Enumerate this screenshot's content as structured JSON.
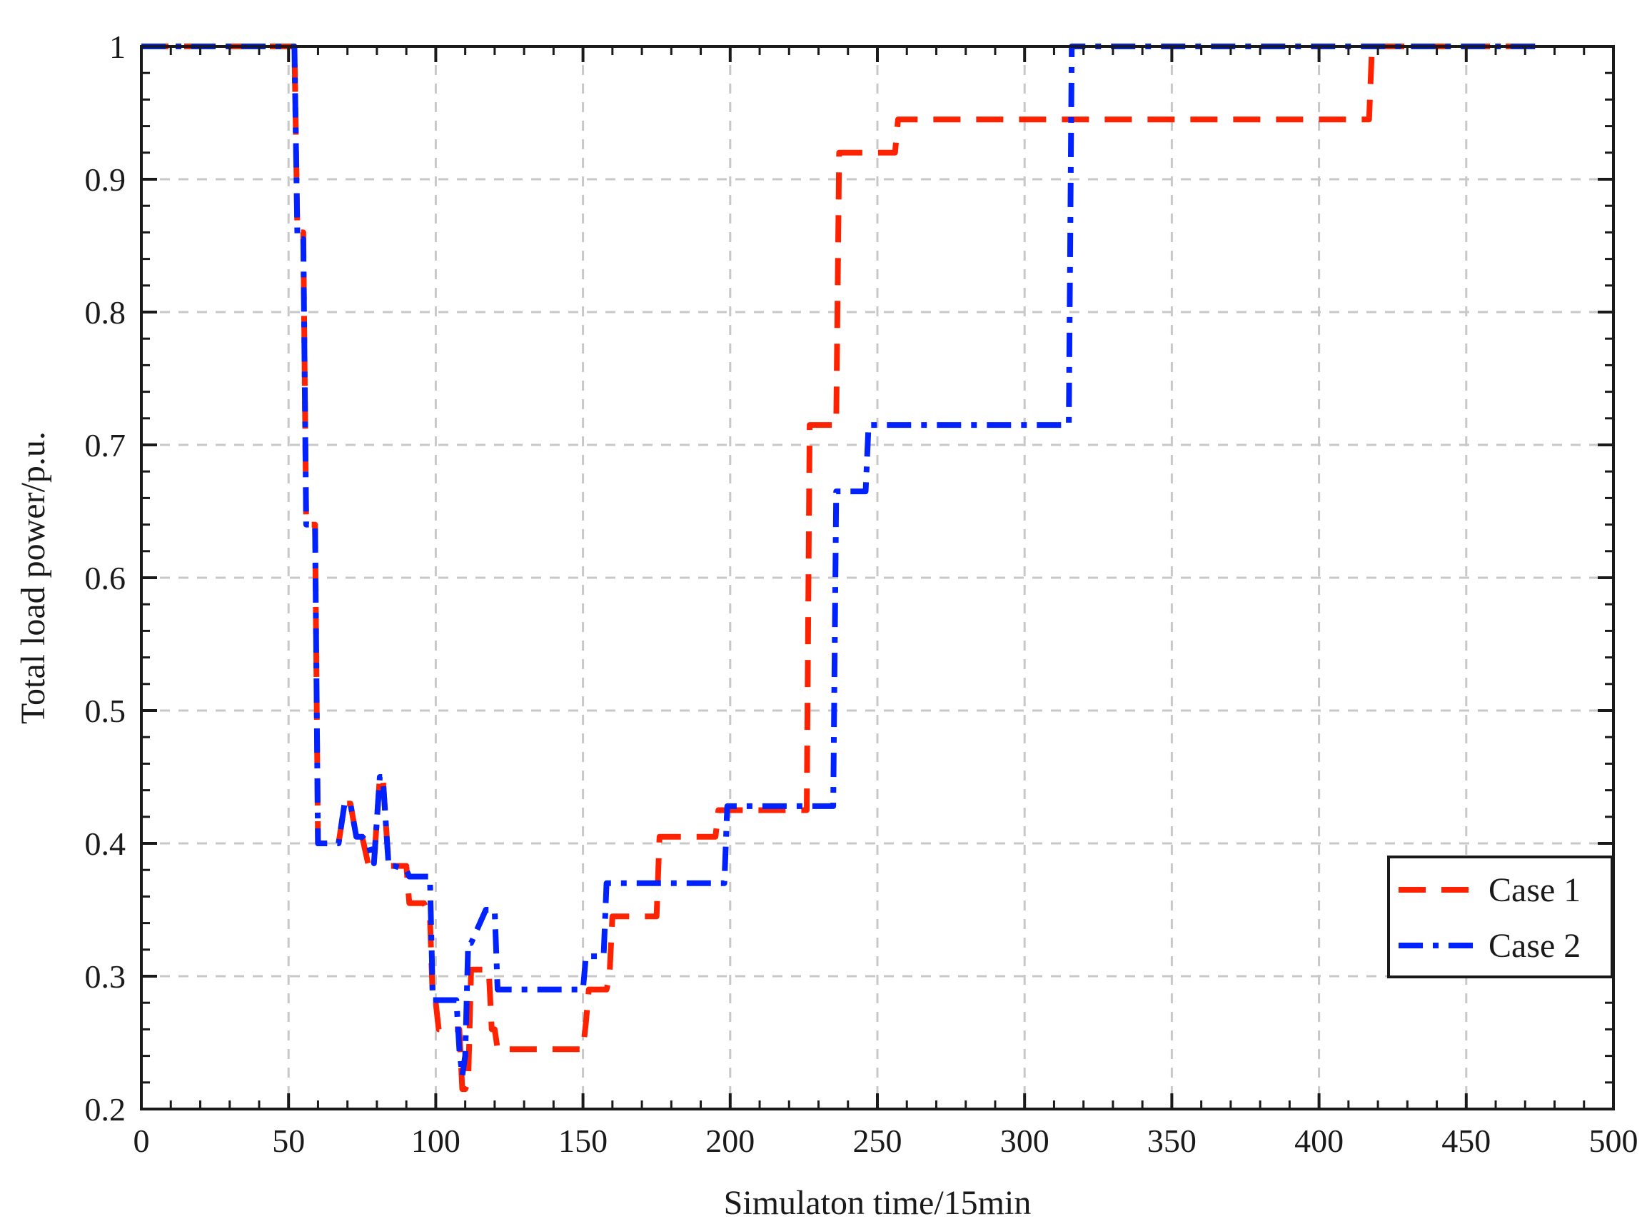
{
  "chart_data": {
    "type": "line",
    "title": "",
    "xlabel": "Simulaton time/15min",
    "ylabel": "Total load power/p.u.",
    "xlim": [
      0,
      500
    ],
    "ylim": [
      0.2,
      1.0
    ],
    "xticks": [
      0,
      50,
      100,
      150,
      200,
      250,
      300,
      350,
      400,
      450,
      500
    ],
    "yticks": [
      0.2,
      0.3,
      0.4,
      0.5,
      0.6,
      0.7,
      0.8,
      0.9,
      1.0
    ],
    "xtick_labels": [
      "0",
      "50",
      "100",
      "150",
      "200",
      "250",
      "300",
      "350",
      "400",
      "450",
      "500"
    ],
    "ytick_labels": [
      "0.2",
      "0.3",
      "0.4",
      "0.5",
      "0.6",
      "0.7",
      "0.8",
      "0.9",
      "1"
    ],
    "grid": true,
    "legend_position": "right",
    "series": [
      {
        "name": "Case 1",
        "color": "#ff2200",
        "style": "dashed",
        "x": [
          0,
          52,
          53,
          55,
          56,
          59,
          60,
          61,
          67,
          69,
          71,
          73,
          75,
          77,
          79,
          81,
          82,
          84,
          86,
          90,
          91,
          96,
          98,
          99,
          100,
          101,
          108,
          109,
          110,
          111,
          112,
          118,
          119,
          120,
          121,
          122,
          150,
          151,
          152,
          158,
          159,
          160,
          165,
          175,
          176,
          195,
          196,
          198,
          226,
          227,
          236,
          237,
          238,
          256,
          257,
          258,
          417,
          418,
          419,
          475
        ],
        "y": [
          1.0,
          1.0,
          0.86,
          0.86,
          0.64,
          0.64,
          0.4,
          0.4,
          0.4,
          0.43,
          0.43,
          0.405,
          0.405,
          0.385,
          0.385,
          0.45,
          0.45,
          0.383,
          0.383,
          0.383,
          0.355,
          0.355,
          0.345,
          0.28,
          0.28,
          0.26,
          0.26,
          0.215,
          0.215,
          0.22,
          0.305,
          0.305,
          0.26,
          0.26,
          0.245,
          0.245,
          0.245,
          0.265,
          0.29,
          0.29,
          0.3,
          0.345,
          0.345,
          0.345,
          0.405,
          0.405,
          0.425,
          0.425,
          0.425,
          0.715,
          0.715,
          0.92,
          0.92,
          0.92,
          0.945,
          0.945,
          0.945,
          1.0,
          1.0,
          1.0
        ]
      },
      {
        "name": "Case 2",
        "color": "#0022ff",
        "style": "dashdot",
        "x": [
          0,
          52,
          53,
          55,
          56,
          59,
          60,
          61,
          67,
          69,
          71,
          73,
          75,
          77,
          79,
          81,
          82,
          84,
          86,
          90,
          91,
          98,
          99,
          100,
          107,
          108,
          109,
          110,
          111,
          112,
          116,
          117,
          118,
          120,
          121,
          122,
          150,
          151,
          152,
          157,
          158,
          159,
          198,
          199,
          235,
          236,
          237,
          246,
          247,
          248,
          315,
          316,
          317,
          475
        ],
        "y": [
          1.0,
          1.0,
          0.855,
          0.855,
          0.64,
          0.64,
          0.4,
          0.4,
          0.4,
          0.43,
          0.43,
          0.405,
          0.405,
          0.4,
          0.385,
          0.45,
          0.45,
          0.383,
          0.383,
          0.38,
          0.375,
          0.375,
          0.282,
          0.282,
          0.282,
          0.245,
          0.225,
          0.24,
          0.325,
          0.325,
          0.345,
          0.35,
          0.35,
          0.35,
          0.29,
          0.29,
          0.29,
          0.315,
          0.315,
          0.315,
          0.37,
          0.37,
          0.37,
          0.428,
          0.428,
          0.665,
          0.665,
          0.665,
          0.715,
          0.715,
          0.715,
          1.0,
          1.0,
          1.0
        ]
      }
    ]
  }
}
